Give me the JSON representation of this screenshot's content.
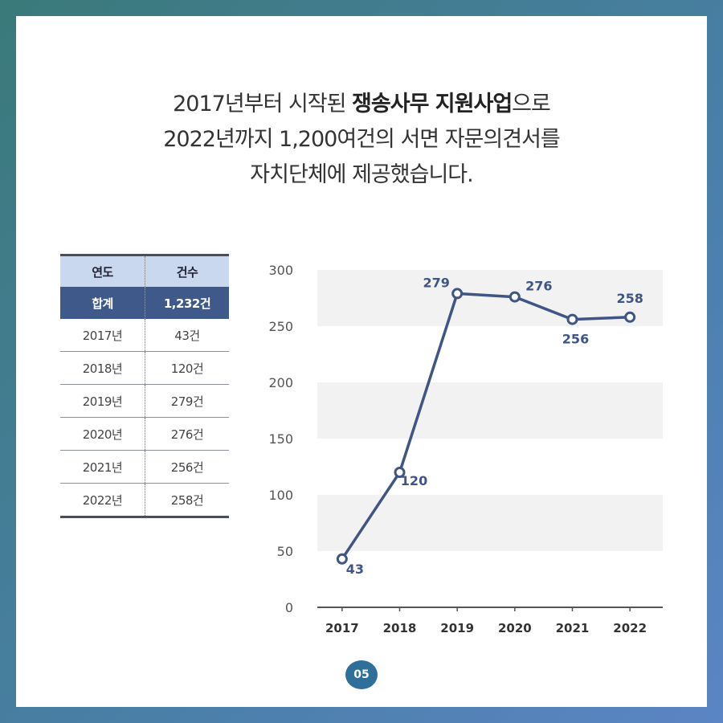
{
  "headline": {
    "line1_pre": "2017년부터 시작된 ",
    "line1_bold": "쟁송사무 지원사업",
    "line1_post": "으로",
    "line2": "2022년까지 1,200여건의 서면 자문의견서를",
    "line3": "자치단체에 제공했습니다."
  },
  "table": {
    "headers": [
      "연도",
      "건수"
    ],
    "total": {
      "label": "합계",
      "value": "1,232건"
    },
    "rows": [
      {
        "year": "2017년",
        "count": "43건"
      },
      {
        "year": "2018년",
        "count": "120건"
      },
      {
        "year": "2019년",
        "count": "279건"
      },
      {
        "year": "2020년",
        "count": "276건"
      },
      {
        "year": "2021년",
        "count": "256건"
      },
      {
        "year": "2022년",
        "count": "258건"
      }
    ]
  },
  "chart_data": {
    "type": "line",
    "categories": [
      "2017",
      "2018",
      "2019",
      "2020",
      "2021",
      "2022"
    ],
    "series": [
      {
        "values": [
          43,
          120,
          279,
          276,
          256,
          258
        ]
      }
    ],
    "data_labels": [
      "43",
      "120",
      "279",
      "276",
      "256",
      "258"
    ],
    "yticks": [
      "0",
      "50",
      "100",
      "150",
      "200",
      "250",
      "300"
    ],
    "ylim": [
      0,
      300
    ],
    "title": "",
    "xlabel": "",
    "ylabel": "",
    "line_color": "#3e5585",
    "band_color": "#f2f2f2",
    "grid": "alternating-bands"
  },
  "page_number": "05"
}
